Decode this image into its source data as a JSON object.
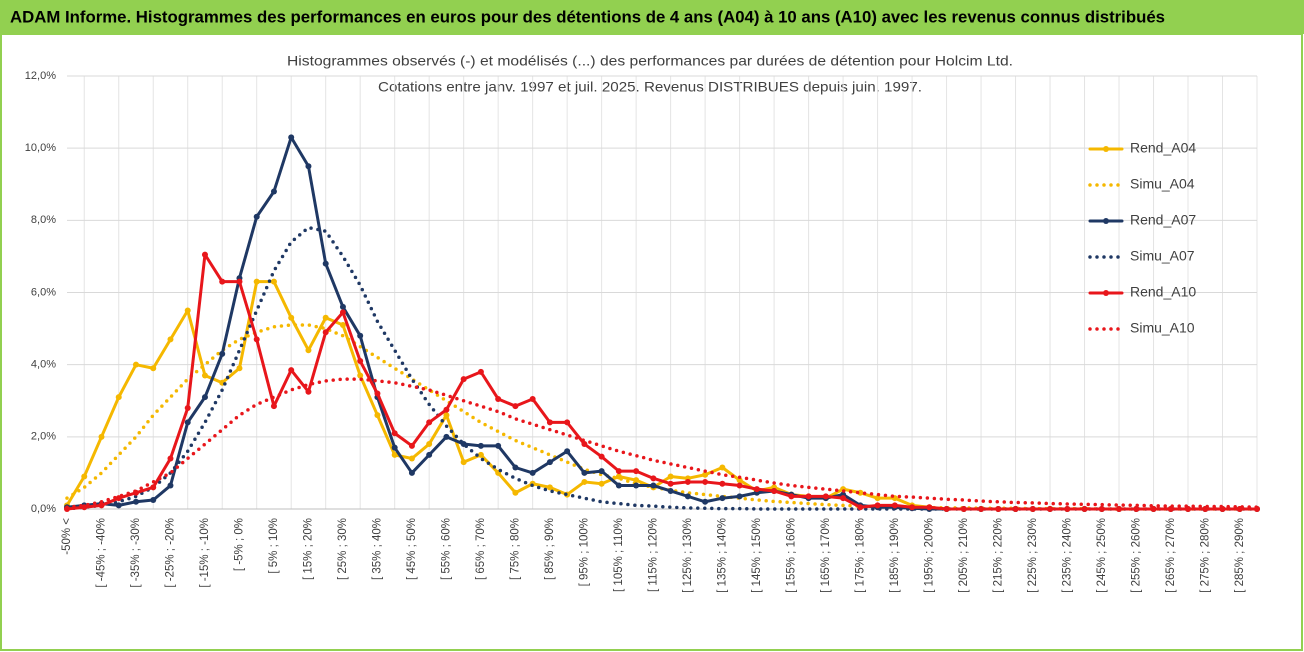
{
  "page_title": "ADAM Informe. Histogrammes des performances en euros pour des détentions de 4 ans (A04) à 10 ans (A10) avec les revenus connus distribués",
  "chart_data": {
    "type": "line",
    "title": "Histogrammes observés (-) et modélisés (...) des performances par durées de détention pour Holcim Ltd.",
    "subtitle": "Cotations entre janv. 1997 et juil. 2025. Revenus DISTRIBUES depuis juin. 1997.",
    "categories": [
      "-50% <",
      null,
      "[ -45% ; -40%",
      null,
      "[ -35% ; -30%",
      null,
      "[ -25% ; -20%",
      null,
      "[ -15% ; -10%",
      null,
      "[ -5% ; 0%",
      null,
      "[ 5% ; 10%",
      null,
      "[ 15% ; 20%",
      null,
      "[ 25% ; 30%",
      null,
      "[ 35% ; 40%",
      null,
      "[ 45% ; 50%",
      null,
      "[ 55% ; 60%",
      null,
      "[ 65% ; 70%",
      null,
      "[ 75% ; 80%",
      null,
      "[ 85% ; 90%",
      null,
      "[ 95% ; 100%",
      null,
      "[ 105% ; 110%",
      null,
      "[ 115% ; 120%",
      null,
      "[ 125% ; 130%",
      null,
      "[ 135% ; 140%",
      null,
      "[ 145% ; 150%",
      null,
      "[ 155% ; 160%",
      null,
      "[ 165% ; 170%",
      null,
      "[ 175% ; 180%",
      null,
      "[ 185% ; 190%",
      null,
      "[ 195% ; 200%",
      null,
      "[ 205% ; 210%",
      null,
      "[ 215% ; 220%",
      null,
      "[ 225% ; 230%",
      null,
      "[ 235% ; 240%",
      null,
      "[ 245% ; 250%",
      null,
      "[ 255% ; 260%",
      null,
      "[ 265% ; 270%",
      null,
      "[ 275% ; 280%",
      null,
      "[ 285% ; 290%",
      null
    ],
    "ylim": [
      0,
      12
    ],
    "yticks": [
      {
        "value": 0,
        "label": "0,0%"
      },
      {
        "value": 2,
        "label": "2,0%"
      },
      {
        "value": 4,
        "label": "4,0%"
      },
      {
        "value": 6,
        "label": "6,0%"
      },
      {
        "value": 8,
        "label": "8,0%"
      },
      {
        "value": 10,
        "label": "10,0%"
      },
      {
        "value": 12,
        "label": "12,0%"
      }
    ],
    "grid": true,
    "legend": "right",
    "series": [
      {
        "name": "Rend_A04",
        "color": "#f5b800",
        "style": "solid",
        "markers": true,
        "values": [
          0.1,
          0.9,
          2.0,
          3.1,
          4.0,
          3.9,
          4.7,
          5.5,
          3.7,
          3.5,
          3.9,
          6.3,
          6.3,
          5.3,
          4.4,
          5.3,
          5.1,
          3.7,
          2.6,
          1.5,
          1.4,
          1.8,
          2.6,
          1.3,
          1.5,
          1.0,
          0.45,
          0.7,
          0.6,
          0.4,
          0.75,
          0.7,
          0.9,
          0.8,
          0.6,
          0.9,
          0.85,
          0.95,
          1.15,
          0.8,
          0.5,
          0.6,
          0.4,
          0.35,
          0.3,
          0.55,
          0.45,
          0.3,
          0.3,
          0.1,
          0.05,
          0,
          0,
          0,
          0,
          0,
          0,
          0,
          0,
          0,
          0,
          0,
          0,
          0,
          0,
          0,
          0,
          0,
          0,
          0
        ]
      },
      {
        "name": "Simu_A04",
        "color": "#f5b800",
        "style": "dotted",
        "markers": false,
        "values": [
          0.3,
          0.6,
          1.0,
          1.5,
          2.0,
          2.6,
          3.1,
          3.6,
          4.0,
          4.4,
          4.7,
          4.9,
          5.05,
          5.1,
          5.1,
          5.0,
          4.8,
          4.5,
          4.2,
          3.9,
          3.6,
          3.3,
          3.0,
          2.7,
          2.4,
          2.15,
          1.9,
          1.7,
          1.5,
          1.3,
          1.1,
          0.95,
          0.85,
          0.7,
          0.6,
          0.52,
          0.45,
          0.4,
          0.35,
          0.3,
          0.25,
          0.21,
          0.18,
          0.15,
          0.12,
          0.1,
          0.08,
          0.07,
          0.06,
          0.05,
          0.04,
          0.03,
          0.03,
          0.02,
          0.02,
          0.02,
          0.01,
          0.01,
          0.01,
          0.01,
          0,
          0,
          0,
          0,
          0,
          0,
          0,
          0,
          0,
          0
        ]
      },
      {
        "name": "Rend_A07",
        "color": "#1f3864",
        "style": "solid",
        "markers": true,
        "values": [
          0.05,
          0.1,
          0.15,
          0.1,
          0.2,
          0.25,
          0.65,
          2.4,
          3.1,
          4.3,
          6.4,
          8.1,
          8.8,
          10.3,
          9.5,
          6.8,
          5.6,
          4.8,
          3.1,
          1.7,
          1.0,
          1.5,
          2.0,
          1.8,
          1.75,
          1.75,
          1.15,
          1.0,
          1.3,
          1.6,
          1.0,
          1.05,
          0.65,
          0.65,
          0.65,
          0.5,
          0.35,
          0.2,
          0.3,
          0.35,
          0.45,
          0.5,
          0.4,
          0.3,
          0.3,
          0.4,
          0.1,
          0.05,
          0.05,
          0.02,
          0,
          0,
          0,
          0,
          0,
          0,
          0,
          0,
          0,
          0,
          0,
          0,
          0,
          0,
          0,
          0,
          0,
          0,
          0,
          0
        ]
      },
      {
        "name": "Simu_A07",
        "color": "#1f3864",
        "style": "dotted",
        "markers": false,
        "values": [
          0,
          0.05,
          0.1,
          0.2,
          0.35,
          0.6,
          1.0,
          1.6,
          2.4,
          3.3,
          4.4,
          5.5,
          6.6,
          7.4,
          7.8,
          7.7,
          7.0,
          6.2,
          5.2,
          4.4,
          3.6,
          2.9,
          2.3,
          1.8,
          1.4,
          1.1,
          0.85,
          0.65,
          0.5,
          0.4,
          0.3,
          0.2,
          0.15,
          0.1,
          0.08,
          0.05,
          0.03,
          0.02,
          0.01,
          0.01,
          0,
          0,
          0,
          0,
          0,
          0,
          0,
          0,
          0,
          0,
          0,
          0,
          0,
          0,
          0,
          0,
          0,
          0,
          0,
          0,
          0,
          0,
          0,
          0,
          0,
          0,
          0,
          0,
          0,
          0
        ]
      },
      {
        "name": "Rend_A10",
        "color": "#e8161b",
        "style": "solid",
        "markers": true,
        "values": [
          0,
          0.05,
          0.1,
          0.3,
          0.45,
          0.6,
          1.4,
          2.8,
          7.05,
          6.3,
          6.3,
          4.7,
          2.85,
          3.85,
          3.25,
          4.9,
          5.45,
          4.1,
          3.2,
          2.1,
          1.75,
          2.4,
          2.75,
          3.6,
          3.8,
          3.05,
          2.85,
          3.05,
          2.4,
          2.4,
          1.8,
          1.45,
          1.05,
          1.05,
          0.85,
          0.7,
          0.75,
          0.75,
          0.7,
          0.65,
          0.55,
          0.5,
          0.35,
          0.35,
          0.35,
          0.3,
          0.05,
          0.1,
          0.1,
          0.05,
          0.05,
          0,
          0,
          0,
          0,
          0,
          0,
          0,
          0,
          0,
          0,
          0,
          0,
          0,
          0,
          0,
          0,
          0,
          0,
          0
        ]
      },
      {
        "name": "Simu_A10",
        "color": "#e8161b",
        "style": "dotted",
        "markers": false,
        "values": [
          0.05,
          0.1,
          0.2,
          0.35,
          0.5,
          0.75,
          1.0,
          1.4,
          1.8,
          2.2,
          2.6,
          2.9,
          3.1,
          3.3,
          3.45,
          3.55,
          3.6,
          3.6,
          3.55,
          3.5,
          3.4,
          3.3,
          3.15,
          3.0,
          2.85,
          2.7,
          2.5,
          2.35,
          2.2,
          2.05,
          1.9,
          1.75,
          1.6,
          1.48,
          1.35,
          1.25,
          1.15,
          1.05,
          0.95,
          0.88,
          0.8,
          0.72,
          0.65,
          0.6,
          0.55,
          0.5,
          0.45,
          0.4,
          0.35,
          0.33,
          0.3,
          0.27,
          0.25,
          0.22,
          0.2,
          0.18,
          0.17,
          0.15,
          0.14,
          0.13,
          0.12,
          0.11,
          0.1,
          0.09,
          0.08,
          0.08,
          0.07,
          0.07,
          0.06,
          0.05
        ]
      }
    ]
  }
}
